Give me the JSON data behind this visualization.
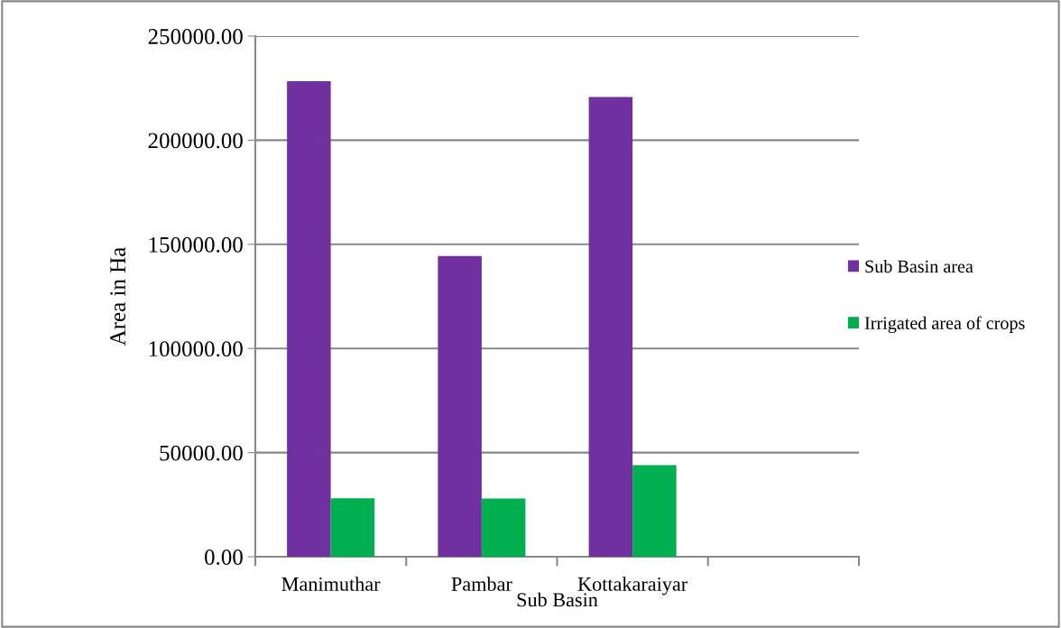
{
  "chart_data": {
    "type": "bar",
    "xlabel": "Sub Basin",
    "ylabel": "Area in Ha",
    "categories": [
      "Manimuthar",
      "Pambar",
      "Kottakaraiyar",
      null
    ],
    "series": [
      {
        "name": "Sub Basin area",
        "color": "#7030a0",
        "values": [
          228300,
          144400,
          220800,
          null
        ]
      },
      {
        "name": "Irrigated area of crops",
        "color": "#00b050",
        "values": [
          28100,
          28000,
          44000,
          null
        ]
      }
    ],
    "ylim": [
      0,
      250000
    ],
    "yticks": [
      {
        "value": 0,
        "label": "0.00"
      },
      {
        "value": 50000,
        "label": "50000.00"
      },
      {
        "value": 100000,
        "label": "100000.00"
      },
      {
        "value": 150000,
        "label": "150000.00"
      },
      {
        "value": 200000,
        "label": "200000.00"
      },
      {
        "value": 250000,
        "label": "250000.00"
      }
    ],
    "grid": "y",
    "legend": "right"
  }
}
